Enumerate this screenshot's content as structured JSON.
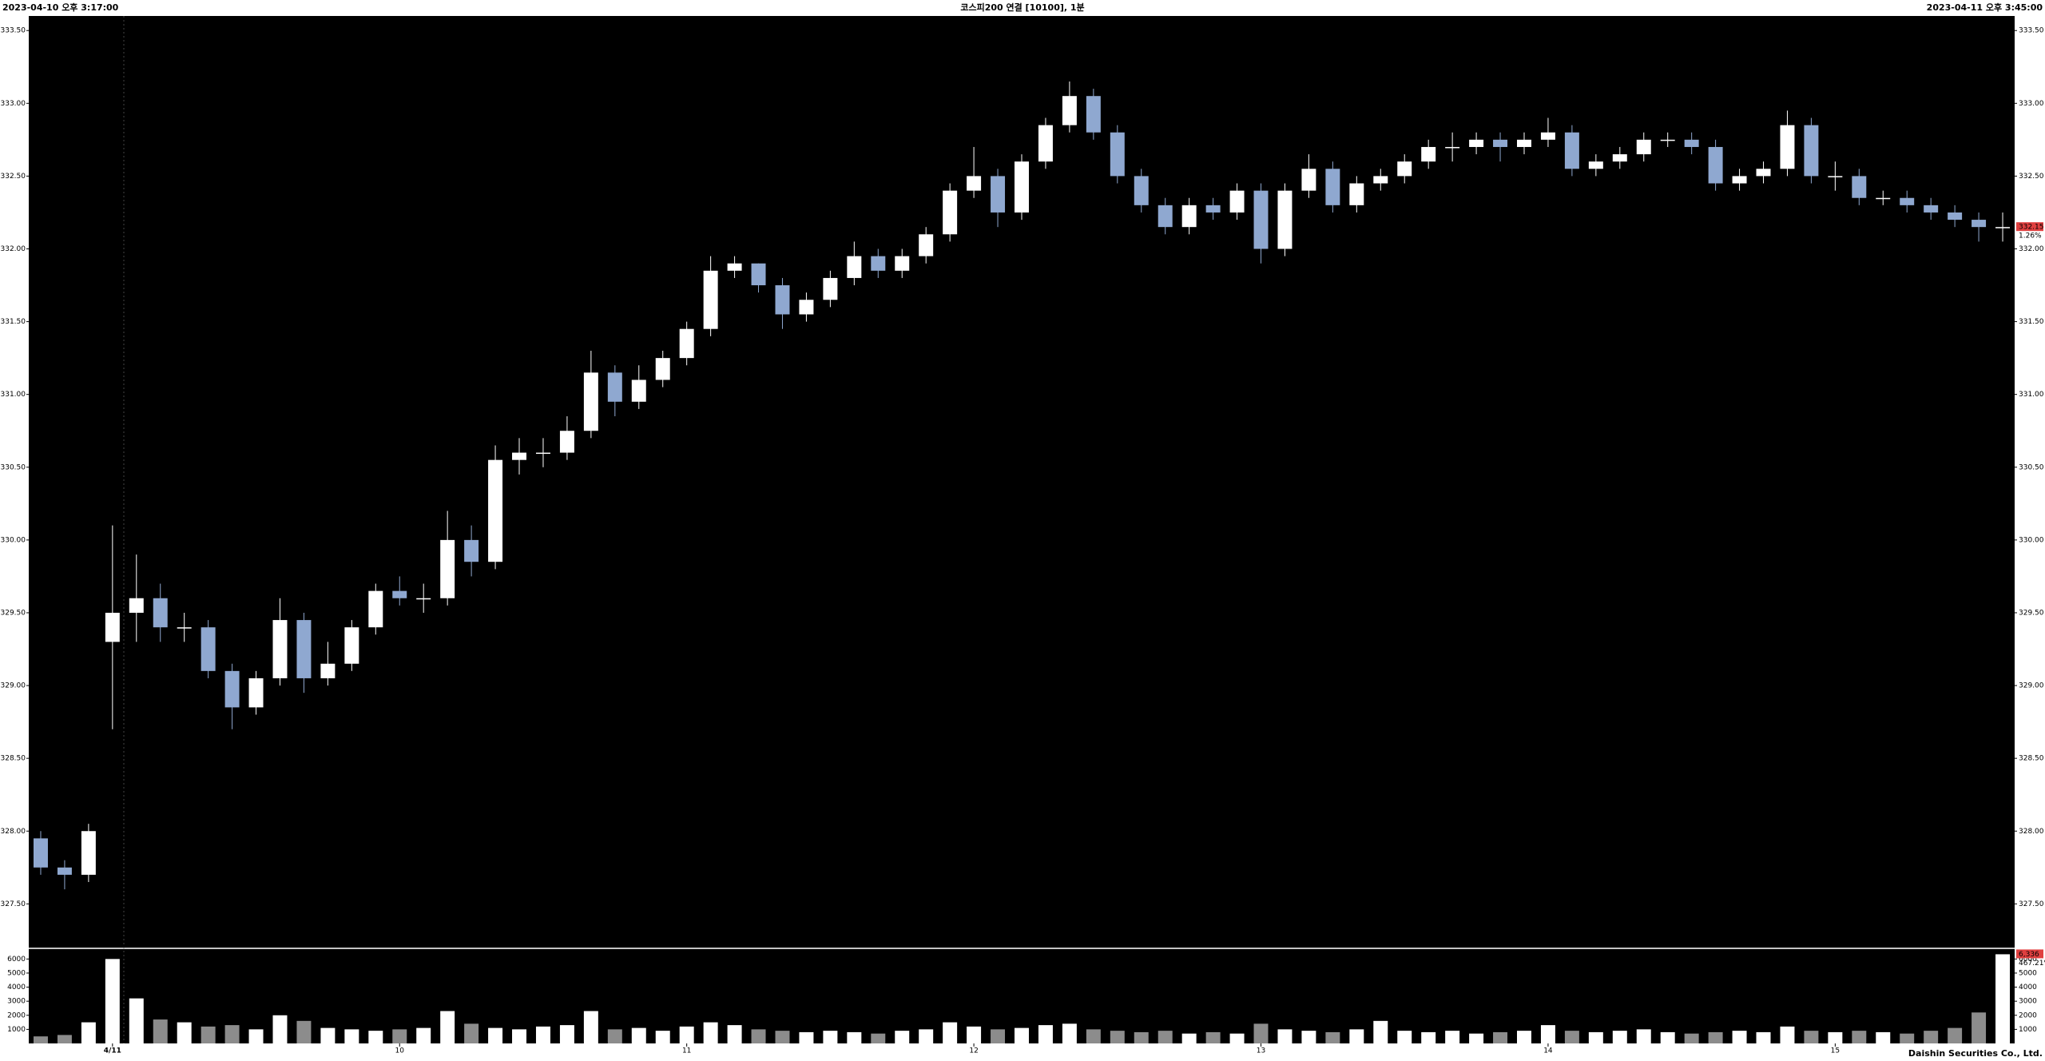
{
  "chart_data": {
    "type": "candlestick",
    "title": "코스피200 연결 [10100], 1분",
    "start_label": "2023-04-10 오후 3:17:00",
    "end_label": "2023-04-11 오후 3:45:00",
    "footer": "Daishin Securities Co., Ltd.",
    "up_color": "#ffffff",
    "down_color": "#8fa8d0",
    "volume_up_color": "#ffffff",
    "volume_down_color": "#8c8c8c",
    "categories": [
      null,
      null,
      null,
      "4/11",
      null,
      null,
      null,
      null,
      null,
      null,
      null,
      null,
      null,
      null,
      null,
      "10",
      null,
      null,
      null,
      null,
      null,
      null,
      null,
      null,
      null,
      null,
      null,
      "11",
      null,
      null,
      null,
      null,
      null,
      null,
      null,
      null,
      null,
      null,
      null,
      "12",
      null,
      null,
      null,
      null,
      null,
      null,
      null,
      null,
      null,
      null,
      null,
      "13",
      null,
      null,
      null,
      null,
      null,
      null,
      null,
      null,
      null,
      null,
      null,
      "14",
      null,
      null,
      null,
      null,
      null,
      null,
      null,
      null,
      null,
      null,
      null,
      "15",
      null,
      null,
      null,
      null,
      null,
      null,
      null
    ],
    "open": [
      327.95,
      327.75,
      327.7,
      329.3,
      329.5,
      329.6,
      329.4,
      329.4,
      329.1,
      328.85,
      329.05,
      329.45,
      329.05,
      329.15,
      329.4,
      329.65,
      329.6,
      329.6,
      330.0,
      329.85,
      330.55,
      330.6,
      330.6,
      330.75,
      331.15,
      330.95,
      331.1,
      331.25,
      331.45,
      331.85,
      331.9,
      331.75,
      331.55,
      331.65,
      331.8,
      331.95,
      331.85,
      331.95,
      332.1,
      332.4,
      332.5,
      332.25,
      332.6,
      332.85,
      333.05,
      332.8,
      332.5,
      332.3,
      332.15,
      332.3,
      332.25,
      332.4,
      332.0,
      332.4,
      332.55,
      332.3,
      332.45,
      332.5,
      332.6,
      332.7,
      332.7,
      332.75,
      332.7,
      332.75,
      332.8,
      332.55,
      332.6,
      332.65,
      332.75,
      332.75,
      332.7,
      332.45,
      332.5,
      332.55,
      332.85,
      332.5,
      332.5,
      332.35,
      332.35,
      332.3,
      332.25,
      332.2,
      332.15
    ],
    "high": [
      328.0,
      327.8,
      328.05,
      330.1,
      329.9,
      329.7,
      329.5,
      329.45,
      329.15,
      329.1,
      329.6,
      329.5,
      329.3,
      329.45,
      329.7,
      329.75,
      329.7,
      330.2,
      330.1,
      330.65,
      330.7,
      330.7,
      330.85,
      331.3,
      331.2,
      331.2,
      331.3,
      331.5,
      331.95,
      331.95,
      331.9,
      331.8,
      331.7,
      331.85,
      332.05,
      332.0,
      332.0,
      332.15,
      332.45,
      332.7,
      332.55,
      332.65,
      332.9,
      333.15,
      333.1,
      332.85,
      332.55,
      332.35,
      332.35,
      332.35,
      332.45,
      332.45,
      332.45,
      332.65,
      332.6,
      332.5,
      332.55,
      332.65,
      332.75,
      332.8,
      332.8,
      332.8,
      332.8,
      332.9,
      332.85,
      332.65,
      332.7,
      332.8,
      332.8,
      332.8,
      332.75,
      332.55,
      332.6,
      332.95,
      332.9,
      332.6,
      332.55,
      332.4,
      332.4,
      332.35,
      332.3,
      332.25,
      332.25
    ],
    "low": [
      327.7,
      327.6,
      327.65,
      328.7,
      329.3,
      329.3,
      329.3,
      329.05,
      328.7,
      328.8,
      329.0,
      328.95,
      329.0,
      329.1,
      329.35,
      329.55,
      329.5,
      329.55,
      329.75,
      329.8,
      330.45,
      330.5,
      330.55,
      330.7,
      330.85,
      330.9,
      331.05,
      331.2,
      331.4,
      331.8,
      331.7,
      331.45,
      331.5,
      331.6,
      331.75,
      331.8,
      331.8,
      331.9,
      332.05,
      332.35,
      332.15,
      332.2,
      332.55,
      332.8,
      332.75,
      332.45,
      332.25,
      332.1,
      332.1,
      332.2,
      332.2,
      331.9,
      331.95,
      332.35,
      332.25,
      332.25,
      332.4,
      332.45,
      332.55,
      332.6,
      332.65,
      332.6,
      332.65,
      332.7,
      332.5,
      332.5,
      332.55,
      332.6,
      332.7,
      332.65,
      332.4,
      332.4,
      332.45,
      332.5,
      332.45,
      332.4,
      332.3,
      332.3,
      332.25,
      332.2,
      332.15,
      332.05,
      332.05
    ],
    "close": [
      327.75,
      327.7,
      328.0,
      329.5,
      329.6,
      329.4,
      329.4,
      329.1,
      328.85,
      329.05,
      329.45,
      329.05,
      329.15,
      329.4,
      329.65,
      329.6,
      329.6,
      330.0,
      329.85,
      330.55,
      330.6,
      330.6,
      330.75,
      331.15,
      330.95,
      331.1,
      331.25,
      331.45,
      331.85,
      331.9,
      331.75,
      331.55,
      331.65,
      331.8,
      331.95,
      331.85,
      331.95,
      332.1,
      332.4,
      332.5,
      332.25,
      332.6,
      332.85,
      333.05,
      332.8,
      332.5,
      332.3,
      332.15,
      332.3,
      332.25,
      332.4,
      332.0,
      332.4,
      332.55,
      332.3,
      332.45,
      332.5,
      332.6,
      332.7,
      332.7,
      332.75,
      332.7,
      332.75,
      332.8,
      332.55,
      332.6,
      332.65,
      332.75,
      332.75,
      332.7,
      332.45,
      332.5,
      332.55,
      332.85,
      332.5,
      332.5,
      332.35,
      332.35,
      332.3,
      332.25,
      332.2,
      332.15,
      332.15
    ],
    "volume": [
      500,
      600,
      1500,
      6000,
      3200,
      1700,
      1500,
      1200,
      1300,
      1000,
      2000,
      1600,
      1100,
      1000,
      900,
      1000,
      1100,
      2300,
      1400,
      1100,
      1000,
      1200,
      1300,
      2300,
      1000,
      1100,
      900,
      1200,
      1500,
      1300,
      1000,
      900,
      800,
      900,
      800,
      700,
      900,
      1000,
      1500,
      1200,
      1000,
      1100,
      1300,
      1400,
      1000,
      900,
      800,
      900,
      700,
      800,
      700,
      1400,
      1000,
      900,
      800,
      1000,
      1600,
      900,
      800,
      900,
      700,
      800,
      900,
      1300,
      900,
      800,
      900,
      1000,
      800,
      700,
      800,
      900,
      800,
      1200,
      900,
      800,
      900,
      800,
      700,
      900,
      1100,
      2200,
      6336
    ],
    "ylim": [
      327.2,
      333.6
    ],
    "yticks": [
      {
        "value": 327.5,
        "label": "327.50"
      },
      {
        "value": 328,
        "label": "328.00"
      },
      {
        "value": 328.5,
        "label": "328.50"
      },
      {
        "value": 329,
        "label": "329.00"
      },
      {
        "value": 329.5,
        "label": "329.50"
      },
      {
        "value": 330,
        "label": "330.00"
      },
      {
        "value": 330.5,
        "label": "330.50"
      },
      {
        "value": 331,
        "label": "331.00"
      },
      {
        "value": 331.5,
        "label": "331.50"
      },
      {
        "value": 332,
        "label": "332.00"
      },
      {
        "value": 332.5,
        "label": "332.50"
      },
      {
        "value": 333,
        "label": "333.00"
      },
      {
        "value": 333.5,
        "label": "333.50"
      }
    ],
    "volume_ylim": [
      0,
      6700
    ],
    "volume_yticks": [
      1000,
      2000,
      3000,
      4000,
      5000,
      6000
    ],
    "price_badge": {
      "value": 332.15,
      "label": "332.15"
    },
    "price_change_label": "1.26%",
    "volume_badge": {
      "value": 6336,
      "label": "6,336"
    },
    "volume_change_label": "467.21%"
  }
}
